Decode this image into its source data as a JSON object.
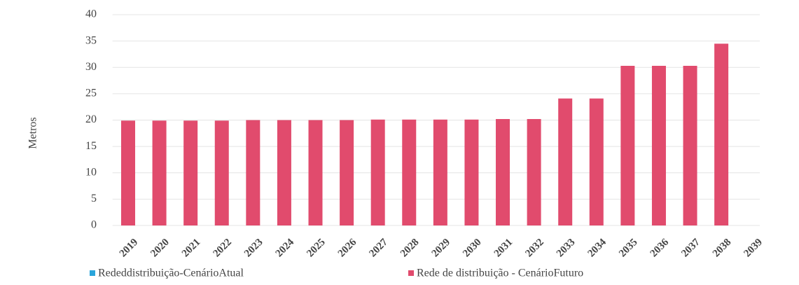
{
  "chart_data": {
    "type": "bar",
    "y_label": "Metros",
    "categories": [
      "2019",
      "2020",
      "2021",
      "2022",
      "2023",
      "2024",
      "2025",
      "2026",
      "2027",
      "2028",
      "2029",
      "2030",
      "2031",
      "2032",
      "2033",
      "2034",
      "2035",
      "2036",
      "2037",
      "2038",
      "2039"
    ],
    "series": [
      {
        "name": "Rededdistribuição-CenárioAtual",
        "color": "#2aa5db",
        "values": [
          null,
          null,
          null,
          null,
          null,
          null,
          null,
          null,
          null,
          null,
          null,
          null,
          null,
          null,
          null,
          null,
          null,
          null,
          null,
          null,
          null
        ]
      },
      {
        "name": "Rede de distribuição - CenárioFuturo",
        "color": "#e14b6d",
        "values": [
          19.9,
          19.9,
          19.9,
          19.9,
          20,
          20,
          20,
          20,
          20.1,
          20.1,
          20.1,
          20.1,
          20.2,
          20.2,
          24.1,
          24.1,
          30.3,
          30.3,
          30.3,
          34.5,
          null
        ]
      }
    ],
    "ylim": [
      0,
      40
    ],
    "yticks": [
      0,
      5,
      10,
      15,
      20,
      25,
      30,
      35,
      40
    ],
    "grid": true
  }
}
